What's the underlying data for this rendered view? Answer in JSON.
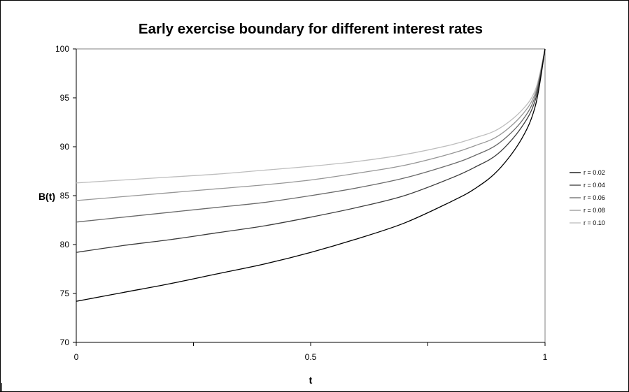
{
  "chart_data": {
    "type": "line",
    "title": "Early exercise boundary for different interest rates",
    "xlabel": "t",
    "ylabel": "B(t)",
    "xlim": [
      0,
      1
    ],
    "ylim": [
      70,
      100
    ],
    "x_ticks": [
      "0",
      "0.5",
      "1"
    ],
    "y_ticks": [
      "70",
      "75",
      "80",
      "85",
      "90",
      "95",
      "100"
    ],
    "grid": false,
    "legend_position": "right",
    "x": [
      0,
      0.1,
      0.2,
      0.3,
      0.4,
      0.5,
      0.6,
      0.7,
      0.8,
      0.85,
      0.9,
      0.95,
      0.98,
      1.0
    ],
    "series": [
      {
        "name": "r = 0.02",
        "color": "#000000",
        "values": [
          74.2,
          75.1,
          76.0,
          77.0,
          78.0,
          79.2,
          80.6,
          82.2,
          84.4,
          85.7,
          87.6,
          90.8,
          94.3,
          100
        ]
      },
      {
        "name": "r = 0.04",
        "color": "#3c3c3c",
        "values": [
          79.2,
          79.9,
          80.5,
          81.2,
          81.9,
          82.8,
          83.8,
          85.0,
          86.8,
          87.9,
          89.3,
          92.0,
          94.9,
          100
        ]
      },
      {
        "name": "r = 0.06",
        "color": "#6a6a6a",
        "values": [
          82.3,
          82.8,
          83.3,
          83.8,
          84.3,
          85.0,
          85.8,
          86.8,
          88.2,
          89.1,
          90.3,
          92.6,
          95.3,
          100
        ]
      },
      {
        "name": "r = 0.08",
        "color": "#969696",
        "values": [
          84.5,
          84.9,
          85.3,
          85.7,
          86.1,
          86.6,
          87.3,
          88.1,
          89.3,
          90.1,
          91.1,
          93.2,
          95.6,
          100
        ]
      },
      {
        "name": "r = 0.10",
        "color": "#bdbdbd",
        "values": [
          86.3,
          86.6,
          86.9,
          87.2,
          87.6,
          88.0,
          88.5,
          89.2,
          90.2,
          90.9,
          91.8,
          93.7,
          95.9,
          100
        ]
      }
    ]
  }
}
